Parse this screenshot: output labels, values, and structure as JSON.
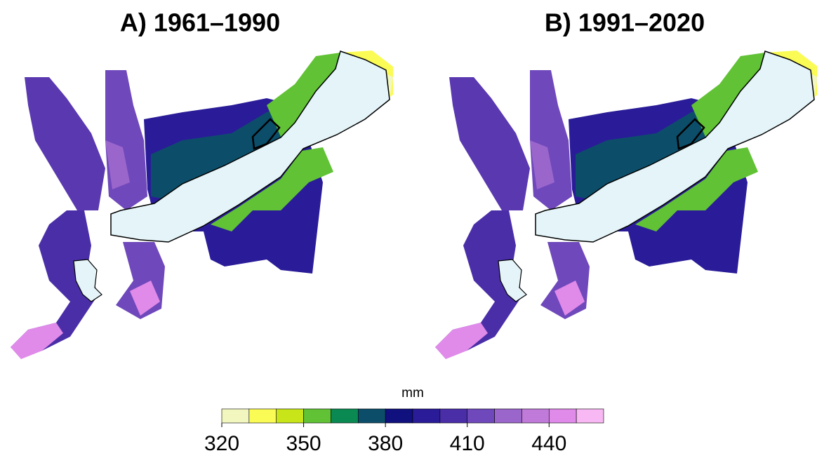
{
  "panels": [
    {
      "title": "A) 1961–1990"
    },
    {
      "title": "B) 1991–2020"
    }
  ],
  "legend": {
    "title": "mm",
    "bins": [
      320,
      330,
      340,
      350,
      360,
      370,
      380,
      390,
      400,
      410,
      420,
      430,
      440,
      450,
      460
    ],
    "colors": [
      "#f2f7c0",
      "#fbfb55",
      "#c8e51a",
      "#60c234",
      "#0a8a52",
      "#0c4e6a",
      "#10107e",
      "#2a1c98",
      "#4a2ea8",
      "#6f48bb",
      "#9a66cc",
      "#c07ad9",
      "#e08ae9",
      "#f8b8f3"
    ],
    "ticks": [
      320,
      350,
      380,
      410,
      440
    ]
  }
}
